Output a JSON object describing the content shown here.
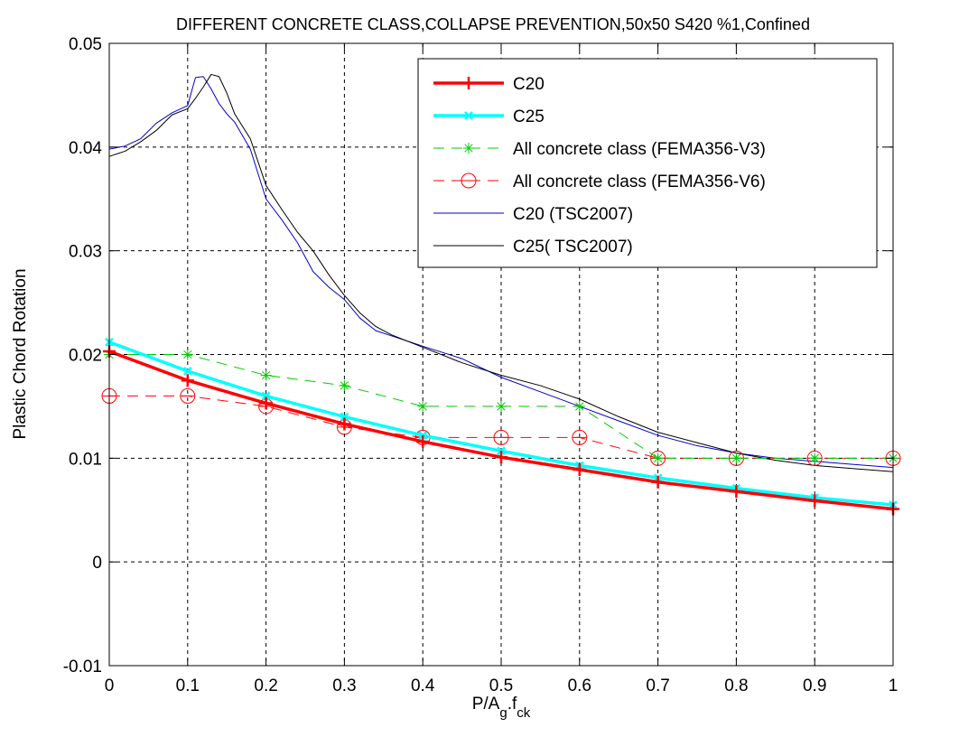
{
  "chart_data": {
    "type": "line",
    "title": "DIFFERENT CONCRETE CLASS,COLLAPSE PREVENTION,50x50 S420 %1,Confined",
    "xlabel": {
      "main": "P/A",
      "sub1": "g",
      "dot": ".f",
      "sub2": "ck"
    },
    "ylabel": "Plastic Chord Rotation",
    "xlim": [
      0,
      1
    ],
    "ylim": [
      -0.01,
      0.05
    ],
    "x_ticks": [
      0,
      0.1,
      0.2,
      0.3,
      0.4,
      0.5,
      0.6,
      0.7,
      0.8,
      0.9,
      1
    ],
    "x_tick_labels": [
      "0",
      "0.1",
      "0.2",
      "0.3",
      "0.4",
      "0.5",
      "0.6",
      "0.7",
      "0.8",
      "0.9",
      "1"
    ],
    "y_ticks": [
      -0.01,
      0,
      0.01,
      0.02,
      0.03,
      0.04,
      0.05
    ],
    "y_tick_labels": [
      "-0.01",
      "0",
      "0.01",
      "0.02",
      "0.03",
      "0.04",
      "0.05"
    ],
    "grid": true,
    "legend_position": "top-right",
    "series": [
      {
        "name": "C20",
        "color": "#ff0000",
        "line_style": "solid",
        "line_width": 3.5,
        "marker": "plus",
        "x": [
          0,
          0.1,
          0.2,
          0.3,
          0.4,
          0.5,
          0.6,
          0.7,
          0.8,
          0.9,
          1
        ],
        "y": [
          0.0203,
          0.0175,
          0.0153,
          0.0133,
          0.0116,
          0.0101,
          0.0089,
          0.0077,
          0.0068,
          0.0059,
          0.0051
        ]
      },
      {
        "name": "C25",
        "color": "#00ffff",
        "line_style": "solid",
        "line_width": 3.5,
        "marker": "x",
        "x": [
          0,
          0.1,
          0.2,
          0.3,
          0.4,
          0.5,
          0.6,
          0.7,
          0.8,
          0.9,
          1
        ],
        "y": [
          0.0212,
          0.0184,
          0.016,
          0.014,
          0.0122,
          0.0107,
          0.0093,
          0.0081,
          0.0071,
          0.0062,
          0.0055
        ]
      },
      {
        "name": "All concrete class (FEMA356-V3)",
        "color": "#00cc00",
        "line_style": "dashed",
        "line_width": 1,
        "marker": "asterisk",
        "x": [
          0,
          0.1,
          0.2,
          0.3,
          0.4,
          0.5,
          0.6,
          0.7,
          0.8,
          0.9,
          1
        ],
        "y": [
          0.02,
          0.02,
          0.018,
          0.017,
          0.015,
          0.015,
          0.015,
          0.01,
          0.01,
          0.01,
          0.01
        ]
      },
      {
        "name": "All concrete class (FEMA356-V6)",
        "color": "#ff0000",
        "line_style": "dashed",
        "line_width": 1,
        "marker": "circle",
        "x": [
          0,
          0.1,
          0.2,
          0.3,
          0.4,
          0.5,
          0.6,
          0.7,
          0.8,
          0.9,
          1
        ],
        "y": [
          0.016,
          0.016,
          0.015,
          0.013,
          0.012,
          0.012,
          0.012,
          0.01,
          0.01,
          0.01,
          0.01
        ]
      },
      {
        "name": "C20 (TSC2007)",
        "color": "#0000cc",
        "line_style": "solid",
        "line_width": 1,
        "marker": "none",
        "x": [
          0,
          0.02,
          0.04,
          0.06,
          0.08,
          0.1,
          0.11,
          0.12,
          0.13,
          0.14,
          0.15,
          0.16,
          0.18,
          0.2,
          0.22,
          0.24,
          0.26,
          0.28,
          0.3,
          0.32,
          0.34,
          0.36,
          0.4,
          0.45,
          0.5,
          0.55,
          0.6,
          0.65,
          0.7,
          0.75,
          0.8,
          0.85,
          0.9,
          0.95,
          1
        ],
        "y": [
          0.0398,
          0.0401,
          0.0408,
          0.0423,
          0.0433,
          0.044,
          0.0467,
          0.0468,
          0.0456,
          0.0442,
          0.0432,
          0.0424,
          0.0398,
          0.035,
          0.033,
          0.0308,
          0.028,
          0.0265,
          0.0253,
          0.0235,
          0.0223,
          0.0218,
          0.0208,
          0.0196,
          0.0178,
          0.0164,
          0.015,
          0.0136,
          0.0122,
          0.0112,
          0.0105,
          0.01,
          0.0097,
          0.0094,
          0.0091
        ]
      },
      {
        "name": "C25( TSC2007)",
        "color": "#000000",
        "line_style": "solid",
        "line_width": 1,
        "marker": "none",
        "x": [
          0,
          0.02,
          0.04,
          0.06,
          0.08,
          0.1,
          0.11,
          0.12,
          0.13,
          0.14,
          0.15,
          0.16,
          0.18,
          0.2,
          0.22,
          0.24,
          0.26,
          0.28,
          0.3,
          0.32,
          0.34,
          0.36,
          0.4,
          0.45,
          0.5,
          0.55,
          0.6,
          0.65,
          0.7,
          0.75,
          0.8,
          0.85,
          0.9,
          0.95,
          1
        ],
        "y": [
          0.0391,
          0.0396,
          0.0405,
          0.0416,
          0.0431,
          0.0437,
          0.0447,
          0.0458,
          0.047,
          0.0468,
          0.0452,
          0.0432,
          0.0408,
          0.0363,
          0.034,
          0.0318,
          0.03,
          0.0277,
          0.0257,
          0.024,
          0.0227,
          0.0219,
          0.0207,
          0.0192,
          0.018,
          0.017,
          0.0157,
          0.014,
          0.0125,
          0.0115,
          0.0105,
          0.0098,
          0.0093,
          0.009,
          0.0087
        ]
      }
    ]
  }
}
